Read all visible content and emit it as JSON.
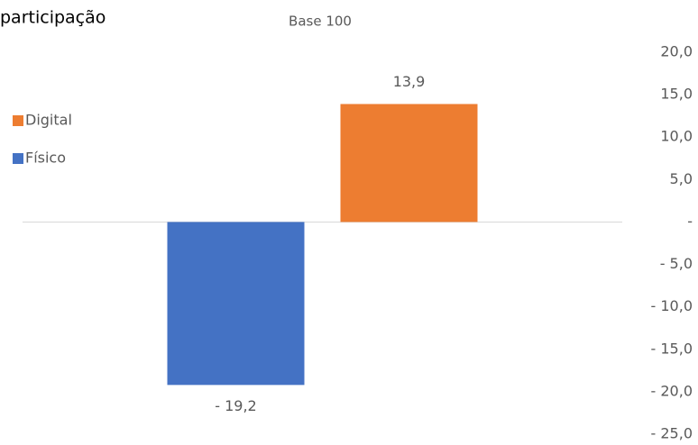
{
  "chart_data": {
    "type": "bar",
    "title": "participação",
    "subtitle": "Base 100",
    "categories": [
      null
    ],
    "series": [
      {
        "name": "Físico",
        "color": "#4472c4",
        "values": [
          -19.2
        ],
        "value_labels": [
          "- 19,2"
        ]
      },
      {
        "name": "Digital",
        "color": "#ed7d31",
        "values": [
          13.9
        ],
        "value_labels": [
          "13,9"
        ]
      }
    ],
    "ylim": [
      -25,
      20
    ],
    "yticks": [
      {
        "value": 20,
        "label": "20,0"
      },
      {
        "value": 15,
        "label": "15,0"
      },
      {
        "value": 10,
        "label": "10,0"
      },
      {
        "value": 5,
        "label": "5,0"
      },
      {
        "value": 0,
        "label": "-"
      },
      {
        "value": -5,
        "label": "- 5,0"
      },
      {
        "value": -10,
        "label": "- 10,0"
      },
      {
        "value": -15,
        "label": "- 15,0"
      },
      {
        "value": -20,
        "label": "- 20,0"
      },
      {
        "value": -25,
        "label": "- 25,0"
      }
    ]
  }
}
